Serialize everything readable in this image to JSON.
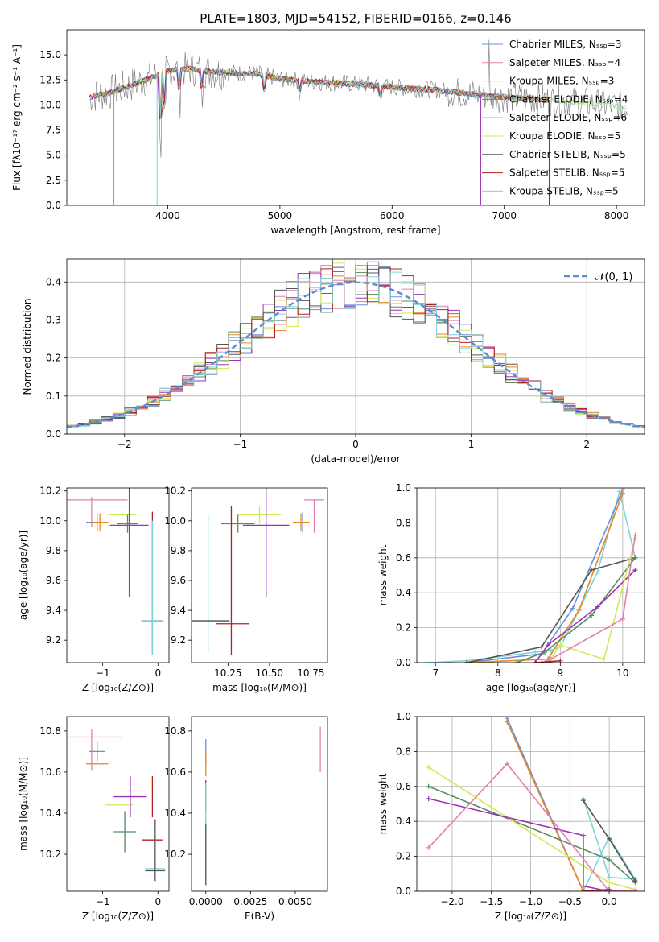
{
  "colors": [
    "#6b8fd6",
    "#e27fb1",
    "#e8861f",
    "#5a8a5f",
    "#9b33b5",
    "#d1ea5a",
    "#555555",
    "#b22222",
    "#7fd3d8"
  ],
  "chart_data": [
    {
      "id": "spectrum",
      "type": "line",
      "title": "PLATE=1803, MJD=54152, FIBERID=0166, z=0.146",
      "xlabel": "wavelength [Angstrom, rest frame]",
      "ylabel": "Flux [fλ10⁻¹⁷ erg cm⁻² s⁻¹ A⁻¹]",
      "xlim": [
        3100,
        8250
      ],
      "ylim": [
        0,
        17.5
      ],
      "xticks": [
        4000,
        5000,
        6000,
        7000,
        8000
      ],
      "yticks": [
        0.0,
        2.5,
        5.0,
        7.5,
        10.0,
        12.5,
        15.0
      ],
      "ytick_labels": [
        "0.0",
        "2.5",
        "5.0",
        "7.5",
        "10.0",
        "12.5",
        "15.0"
      ],
      "legend_position": "right",
      "legend": [
        "Chabrier MILES, Nₛₛₚ=3",
        "Salpeter MILES, Nₛₛₚ=4",
        "Kroupa MILES, Nₛₛₚ=3",
        "Chabrier ELODIE, Nₛₛₚ=4",
        "Salpeter ELODIE, Nₛₛₚ=6",
        "Kroupa ELODIE, Nₛₛₚ=5",
        "Chabrier STELIB, Nₛₛₚ=5",
        "Salpeter STELIB, Nₛₛₚ=5",
        "Kroupa STELIB, Nₛₛₚ=5"
      ],
      "continuum": {
        "x": [
          3300,
          3500,
          3700,
          3900,
          4000,
          4200,
          4400,
          4600,
          4800,
          5000,
          5200,
          5500,
          5800,
          6100,
          6400,
          6700,
          7000,
          7300,
          7600,
          7900,
          8100
        ],
        "y": [
          10.8,
          11.3,
          12.1,
          12.9,
          13.4,
          13.6,
          13.3,
          13.2,
          13.1,
          12.6,
          12.4,
          12.2,
          12.0,
          11.7,
          11.5,
          11.1,
          10.8,
          10.6,
          10.3,
          10.0,
          9.8
        ]
      }
    },
    {
      "id": "residuals",
      "type": "histogram",
      "xlabel": "(data-model)/error",
      "ylabel": "Normed distribution",
      "xlim": [
        -2.5,
        2.5
      ],
      "ylim": [
        0,
        0.46
      ],
      "xticks": [
        -2,
        -1,
        0,
        1,
        2
      ],
      "xtick_labels": [
        "−2",
        "−1",
        "0",
        "1",
        "2"
      ],
      "yticks": [
        0.0,
        0.1,
        0.2,
        0.3,
        0.4
      ],
      "ytick_labels": [
        "0.0",
        "0.1",
        "0.2",
        "0.3",
        "0.4"
      ],
      "legend": "𝒩(0, 1)",
      "legend_position": "top-right",
      "bin_edges_range": [
        -2.5,
        2.5
      ],
      "bin_count": 50
    },
    {
      "id": "age_vs_Z",
      "type": "errorbar",
      "xlabel": "Z [log₁₀(Z/Z⊙)]",
      "ylabel": "age  [log₁₀(age/yr)]",
      "xlim": [
        -1.65,
        0.2
      ],
      "ylim": [
        9.05,
        10.22
      ],
      "xticks": [
        -1,
        0
      ],
      "xtick_labels": [
        "−1",
        "0"
      ],
      "yticks": [
        9.2,
        9.4,
        9.6,
        9.8,
        10.0,
        10.2
      ],
      "ytick_labels": [
        "9.2",
        "9.4",
        "9.6",
        "9.8",
        "10.0",
        "10.2"
      ],
      "points": [
        {
          "x": -1.25,
          "y": 10.14,
          "xerr": 0.7,
          "yerr": 0.0,
          "c": 1
        },
        {
          "x": -1.2,
          "y": 10.06,
          "xerr": 0.0,
          "yerr": 0.1,
          "c": 1
        },
        {
          "x": -1.1,
          "y": 9.99,
          "xerr": 0.2,
          "yerr": 0.06,
          "c": 0
        },
        {
          "x": -1.05,
          "y": 9.99,
          "xerr": 0.15,
          "yerr": 0.06,
          "c": 2
        },
        {
          "x": -0.65,
          "y": 10.04,
          "xerr": 0.25,
          "yerr": 0.02,
          "c": 5
        },
        {
          "x": -0.55,
          "y": 9.98,
          "xerr": 0.18,
          "yerr": 0.06,
          "c": 3
        },
        {
          "x": -0.52,
          "y": 9.97,
          "xerr": 0.35,
          "yerr": 0.48,
          "c": 4
        },
        {
          "x": -0.1,
          "y": 9.33,
          "xerr": 0.2,
          "yerr": 0.0,
          "c": 6
        },
        {
          "x": -0.1,
          "y": 9.33,
          "xerr": 0.2,
          "yerr": 0.0,
          "c": 8
        },
        {
          "x": -0.1,
          "y": 9.58,
          "xerr": 0.0,
          "yerr": 0.48,
          "c": 7
        },
        {
          "x": -0.1,
          "y": 9.55,
          "xerr": 0.0,
          "yerr": 0.45,
          "c": 8
        }
      ]
    },
    {
      "id": "age_vs_mass",
      "type": "errorbar",
      "xlabel": "mass [log₁₀(M/M⊙)]",
      "xlim": [
        10.03,
        10.85
      ],
      "ylim": [
        9.05,
        10.22
      ],
      "xticks": [
        10.25,
        10.5,
        10.75
      ],
      "xtick_labels": [
        "10.25",
        "10.50",
        "10.75"
      ],
      "yticks": [
        9.2,
        9.4,
        9.6,
        9.8,
        10.0,
        10.2
      ],
      "ytick_labels": [
        "9.2",
        "9.4",
        "9.6",
        "9.8",
        "10.0",
        "10.2"
      ],
      "points": [
        {
          "x": 10.77,
          "y": 10.14,
          "xerr": 0.06,
          "yerr": 0.0,
          "c": 1
        },
        {
          "x": 10.77,
          "y": 10.03,
          "xerr": 0.0,
          "yerr": 0.11,
          "c": 1
        },
        {
          "x": 10.7,
          "y": 9.99,
          "xerr": 0.04,
          "yerr": 0.07,
          "c": 0
        },
        {
          "x": 10.69,
          "y": 9.99,
          "xerr": 0.05,
          "yerr": 0.06,
          "c": 2
        },
        {
          "x": 10.44,
          "y": 10.04,
          "xerr": 0.13,
          "yerr": 0.06,
          "c": 5
        },
        {
          "x": 10.31,
          "y": 9.98,
          "xerr": 0.1,
          "yerr": 0.06,
          "c": 3
        },
        {
          "x": 10.48,
          "y": 9.97,
          "xerr": 0.14,
          "yerr": 0.48,
          "c": 4
        },
        {
          "x": 10.13,
          "y": 9.33,
          "xerr": 0.13,
          "yerr": 0.0,
          "c": 8
        },
        {
          "x": 10.13,
          "y": 9.58,
          "xerr": 0.0,
          "yerr": 0.46,
          "c": 8
        },
        {
          "x": 10.13,
          "y": 9.33,
          "xerr": 0.13,
          "yerr": 0.0,
          "c": 6
        },
        {
          "x": 10.28,
          "y": 9.31,
          "xerr": 0.1,
          "yerr": 0.0,
          "c": 7
        },
        {
          "x": 10.27,
          "y": 9.6,
          "xerr": 0.0,
          "yerr": 0.5,
          "c": 7
        }
      ]
    },
    {
      "id": "weight_vs_age",
      "type": "line",
      "xlabel": "age  [log₁₀(age/yr)]",
      "ylabel": "mass weight",
      "xlim": [
        6.7,
        10.35
      ],
      "ylim": [
        0,
        1.0
      ],
      "xticks": [
        7,
        8,
        9,
        10
      ],
      "xtick_labels": [
        "7",
        "8",
        "9",
        "10"
      ],
      "yticks": [
        0.0,
        0.2,
        0.4,
        0.6,
        0.8,
        1.0
      ],
      "ytick_labels": [
        "0.0",
        "0.2",
        "0.4",
        "0.6",
        "0.8",
        "1.0"
      ],
      "series": [
        {
          "c": 8,
          "x": [
            6.85,
            7.5,
            8.6,
            8.85,
            9.0,
            9.3,
            9.6,
            9.95,
            10.2
          ],
          "y": [
            0.0,
            0.01,
            0.06,
            0.07,
            0.09,
            0.3,
            0.52,
            0.98,
            0.6
          ]
        },
        {
          "c": 0,
          "x": [
            7.5,
            8.7,
            9.2,
            10.0
          ],
          "y": [
            0.0,
            0.05,
            0.31,
            0.99
          ]
        },
        {
          "c": 2,
          "x": [
            7.5,
            8.8,
            9.3,
            10.0
          ],
          "y": [
            0.0,
            0.02,
            0.3,
            0.97
          ]
        },
        {
          "c": 6,
          "x": [
            7.5,
            8.7,
            9.5,
            10.2
          ],
          "y": [
            0.0,
            0.09,
            0.53,
            0.6
          ]
        },
        {
          "c": 3,
          "x": [
            8.3,
            8.75,
            9.5,
            10.2
          ],
          "y": [
            0.0,
            0.06,
            0.27,
            0.6
          ]
        },
        {
          "c": 4,
          "x": [
            8.6,
            8.8,
            9.6,
            10.2
          ],
          "y": [
            0.0,
            0.1,
            0.32,
            0.53
          ]
        },
        {
          "c": 5,
          "x": [
            8.8,
            9.0,
            9.7,
            10.2
          ],
          "y": [
            0.0,
            0.1,
            0.02,
            0.71
          ]
        },
        {
          "c": 1,
          "x": [
            8.7,
            8.85,
            10.0,
            10.2
          ],
          "y": [
            0.0,
            0.02,
            0.25,
            0.73
          ]
        },
        {
          "c": 7,
          "x": [
            8.6,
            9.0
          ],
          "y": [
            0.0,
            0.01
          ]
        }
      ]
    },
    {
      "id": "mass_vs_Z",
      "type": "errorbar",
      "xlabel": "Z [log₁₀(Z/Z⊙)]",
      "ylabel": "mass [log₁₀(M/M⊙)]",
      "xlim": [
        -1.65,
        0.2
      ],
      "ylim": [
        10.02,
        10.87
      ],
      "xticks": [
        -1,
        0
      ],
      "xtick_labels": [
        "−1",
        "0"
      ],
      "yticks": [
        10.2,
        10.4,
        10.6,
        10.8
      ],
      "ytick_labels": [
        "10.2",
        "10.4",
        "10.6",
        "10.8"
      ],
      "points": [
        {
          "x": -1.25,
          "y": 10.77,
          "xerr": 0.6,
          "yerr": 0.0,
          "c": 1
        },
        {
          "x": -1.2,
          "y": 10.71,
          "xerr": 0.0,
          "yerr": 0.1,
          "c": 1
        },
        {
          "x": -1.1,
          "y": 10.7,
          "xerr": 0.15,
          "yerr": 0.05,
          "c": 0
        },
        {
          "x": -1.1,
          "y": 10.64,
          "xerr": 0.2,
          "yerr": 0.0,
          "c": 2
        },
        {
          "x": -0.7,
          "y": 10.44,
          "xerr": 0.25,
          "yerr": 0.0,
          "c": 5
        },
        {
          "x": -0.6,
          "y": 10.31,
          "xerr": 0.2,
          "yerr": 0.1,
          "c": 3
        },
        {
          "x": -0.5,
          "y": 10.48,
          "xerr": 0.3,
          "yerr": 0.1,
          "c": 4
        },
        {
          "x": -0.1,
          "y": 10.48,
          "xerr": 0.0,
          "yerr": 0.1,
          "c": 7
        },
        {
          "x": -0.1,
          "y": 10.27,
          "xerr": 0.18,
          "yerr": 0.0,
          "c": 7
        },
        {
          "x": -0.05,
          "y": 10.13,
          "xerr": 0.18,
          "yerr": 0.0,
          "c": 8
        },
        {
          "x": -0.05,
          "y": 10.12,
          "xerr": 0.18,
          "yerr": 0.0,
          "c": 6
        },
        {
          "x": -0.05,
          "y": 10.22,
          "xerr": 0.0,
          "yerr": 0.15,
          "c": 6
        }
      ]
    },
    {
      "id": "mass_vs_ebv",
      "type": "errorbar",
      "xlabel": "E(B-V)",
      "xlim": [
        -0.0008,
        0.0068
      ],
      "ylim": [
        10.02,
        10.87
      ],
      "xticks": [
        0.0,
        0.0025,
        0.005
      ],
      "xtick_labels": [
        "0.0000",
        "0.0025",
        "0.0050"
      ],
      "yticks": [
        10.2,
        10.4,
        10.6,
        10.8
      ],
      "ytick_labels": [
        "10.2",
        "10.4",
        "10.6",
        "10.8"
      ],
      "points": [
        {
          "x": 0.0,
          "y": 10.7,
          "xerr": 0.0,
          "yerr": 0.06,
          "c": 0
        },
        {
          "x": 0.0,
          "y": 10.64,
          "xerr": 0.0,
          "yerr": 0.06,
          "c": 2
        },
        {
          "x": 0.0,
          "y": 10.48,
          "xerr": 0.0,
          "yerr": 0.08,
          "c": 7
        },
        {
          "x": 0.0,
          "y": 10.3,
          "xerr": 0.0,
          "yerr": 0.25,
          "c": 8
        },
        {
          "x": 0.0,
          "y": 10.2,
          "xerr": 0.0,
          "yerr": 0.15,
          "c": 6
        },
        {
          "x": 0.0064,
          "y": 10.71,
          "xerr": 0.0,
          "yerr": 0.11,
          "c": 1
        }
      ]
    },
    {
      "id": "weight_vs_Z",
      "type": "line",
      "xlabel": "Z [log₁₀(Z/Z⊙)]",
      "ylabel": "mass weight",
      "xlim": [
        -2.45,
        0.45
      ],
      "ylim": [
        0,
        1.0
      ],
      "xticks": [
        -2.0,
        -1.5,
        -1.0,
        -0.5,
        0.0
      ],
      "xtick_labels": [
        "−2.0",
        "−1.5",
        "−1.0",
        "−0.5",
        "0.0"
      ],
      "yticks": [
        0.0,
        0.2,
        0.4,
        0.6,
        0.8,
        1.0
      ],
      "ytick_labels": [
        "0.0",
        "0.2",
        "0.4",
        "0.6",
        "0.8",
        "1.0"
      ],
      "series": [
        {
          "c": 0,
          "x": [
            -1.3,
            -0.33,
            0.0,
            0.33
          ],
          "y": [
            0.99,
            0.0,
            0.0,
            0.0
          ]
        },
        {
          "c": 2,
          "x": [
            -1.3,
            -0.33,
            0.0,
            0.33
          ],
          "y": [
            0.97,
            0.0,
            0.0,
            0.0
          ]
        },
        {
          "c": 8,
          "x": [
            -0.33,
            0.0,
            0.33,
            0.0,
            -0.33
          ],
          "y": [
            0.53,
            0.08,
            0.07,
            0.31,
            0.0
          ]
        },
        {
          "c": 3,
          "x": [
            -2.3,
            0.0,
            0.33
          ],
          "y": [
            0.6,
            0.18,
            0.05
          ]
        },
        {
          "c": 5,
          "x": [
            -2.3,
            0.0,
            0.33
          ],
          "y": [
            0.71,
            0.05,
            0.01
          ]
        },
        {
          "c": 4,
          "x": [
            -2.3,
            -0.33,
            -0.33,
            0.0,
            0.33
          ],
          "y": [
            0.53,
            0.32,
            0.03,
            0.0,
            0.0
          ]
        },
        {
          "c": 1,
          "x": [
            -2.3,
            -1.3,
            0.0,
            0.33
          ],
          "y": [
            0.25,
            0.73,
            0.0,
            0.0
          ]
        },
        {
          "c": 6,
          "x": [
            -0.33,
            0.0,
            0.33
          ],
          "y": [
            0.52,
            0.3,
            0.06
          ]
        },
        {
          "c": 7,
          "x": [
            -0.33,
            0.0
          ],
          "y": [
            0.0,
            0.01
          ]
        }
      ]
    }
  ]
}
